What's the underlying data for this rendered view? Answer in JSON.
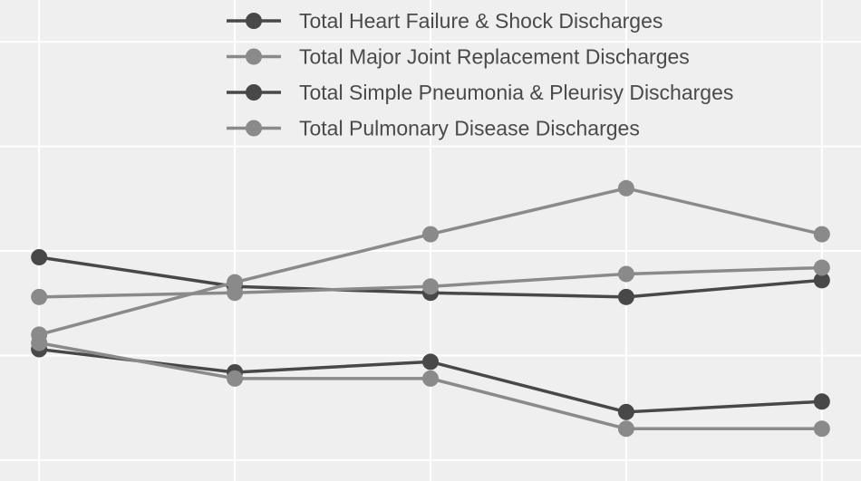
{
  "chart_data": {
    "type": "line",
    "x": [
      1,
      2,
      3,
      4,
      5
    ],
    "xlim": [
      0.8,
      5.2
    ],
    "ylim": [
      0,
      23
    ],
    "grid": true,
    "legend_position": "top-right",
    "series": [
      {
        "name": "Total Heart Failure & Shock Discharges",
        "color": "#484848",
        "values": [
          10.7,
          9.3,
          9.0,
          8.8,
          9.6
        ]
      },
      {
        "name": "Total Major Joint Replacement Discharges",
        "color": "#8a8a8a",
        "values": [
          7.0,
          9.5,
          11.8,
          14.0,
          11.8
        ]
      },
      {
        "name": "Total Simple Pneumonia & Pleurisy Discharges",
        "color": "#484848",
        "values": [
          6.3,
          5.2,
          5.7,
          3.3,
          3.8
        ]
      },
      {
        "name": "Total Pulmonary Disease Discharges",
        "color": "#8a8a8a",
        "values": [
          6.6,
          4.9,
          4.9,
          2.5,
          2.5
        ]
      },
      {
        "name": "",
        "color": "#8a8a8a",
        "values": [
          8.8,
          9.0,
          9.3,
          9.9,
          10.2
        ]
      }
    ]
  }
}
